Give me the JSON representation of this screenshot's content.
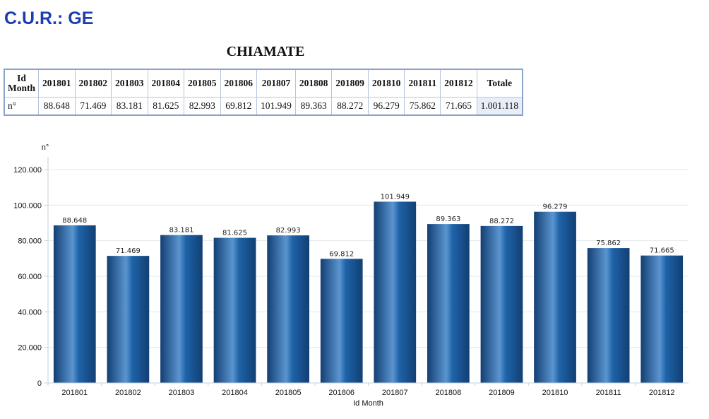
{
  "page_title": "C.U.R.: GE",
  "report_title": "CHIAMATE",
  "table": {
    "row_header_label": "Id\nMonth",
    "columns": [
      "201801",
      "201802",
      "201803",
      "201804",
      "201805",
      "201806",
      "201807",
      "201808",
      "201809",
      "201810",
      "201811",
      "201812"
    ],
    "total_label": "Totale",
    "value_row_label": "n°",
    "values": [
      "88.648",
      "71.469",
      "83.181",
      "81.625",
      "82.993",
      "69.812",
      "101.949",
      "89.363",
      "88.272",
      "96.279",
      "75.862",
      "71.665"
    ],
    "total_value": "1.001.118"
  },
  "chart_data": {
    "type": "bar",
    "categories": [
      "201801",
      "201802",
      "201803",
      "201804",
      "201805",
      "201806",
      "201807",
      "201808",
      "201809",
      "201810",
      "201811",
      "201812"
    ],
    "values": [
      88648,
      71469,
      83181,
      81625,
      82993,
      69812,
      101949,
      89363,
      88272,
      96279,
      75862,
      71665
    ],
    "value_labels": [
      "88.648",
      "71.469",
      "83.181",
      "81.625",
      "82.993",
      "69.812",
      "101.949",
      "89.363",
      "88.272",
      "96.279",
      "75.862",
      "71.665"
    ],
    "ylabel": "n°",
    "xlabel": "Id Month",
    "ylim": [
      0,
      120000
    ],
    "yticks": [
      0,
      20000,
      40000,
      60000,
      80000,
      100000,
      120000
    ],
    "ytick_labels": [
      "0",
      "20.000",
      "40.000",
      "60.000",
      "80.000",
      "100.000",
      "120.000"
    ],
    "grid": true,
    "colors": {
      "bar_dark": "#123f73",
      "bar_mid": "#1e63a8",
      "bar_light": "#5b95d0",
      "grid": "#e3e8ef",
      "axis": "#c5d0dd"
    }
  }
}
